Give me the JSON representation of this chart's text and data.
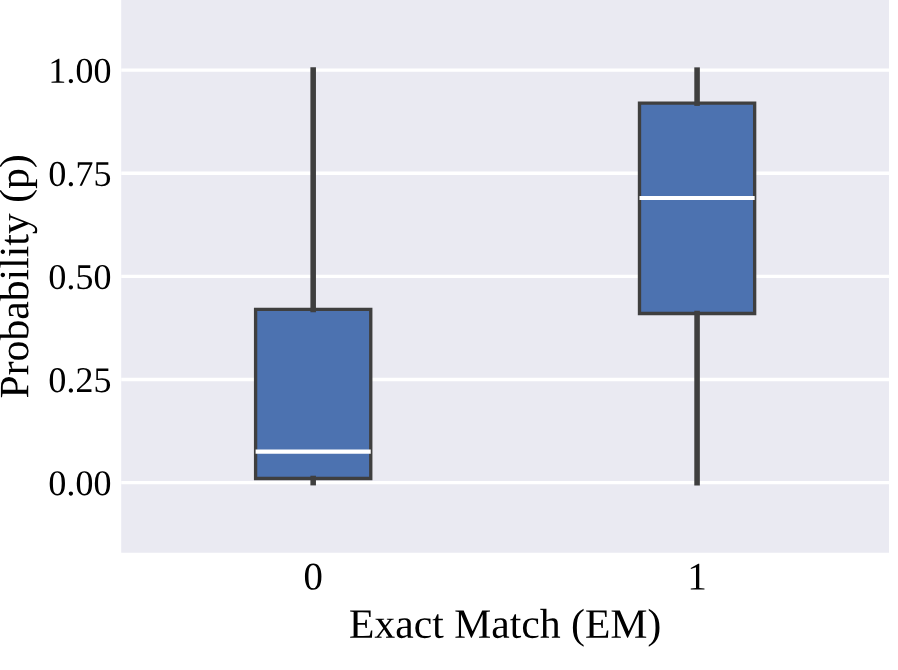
{
  "chart_data": {
    "type": "box",
    "xlabel": "Exact Match (EM)",
    "ylabel": "Probability (p)",
    "categories": [
      "0",
      "1"
    ],
    "boxes": [
      {
        "low": 0.0,
        "q1": 0.01,
        "median": 0.075,
        "q3": 0.42,
        "high": 1.0
      },
      {
        "low": 0.0,
        "q1": 0.41,
        "median": 0.69,
        "q3": 0.92,
        "high": 1.0
      }
    ],
    "color": "#4c72b0",
    "ylim": [
      -0.17,
      1.17
    ],
    "yticks": [
      {
        "value": 0,
        "label": "0.00"
      },
      {
        "value": 0.25,
        "label": "0.25"
      },
      {
        "value": 0.5,
        "label": "0.50"
      },
      {
        "value": 0.75,
        "label": "0.75"
      },
      {
        "value": 1.0,
        "label": "1.00"
      }
    ],
    "grid": "y"
  }
}
